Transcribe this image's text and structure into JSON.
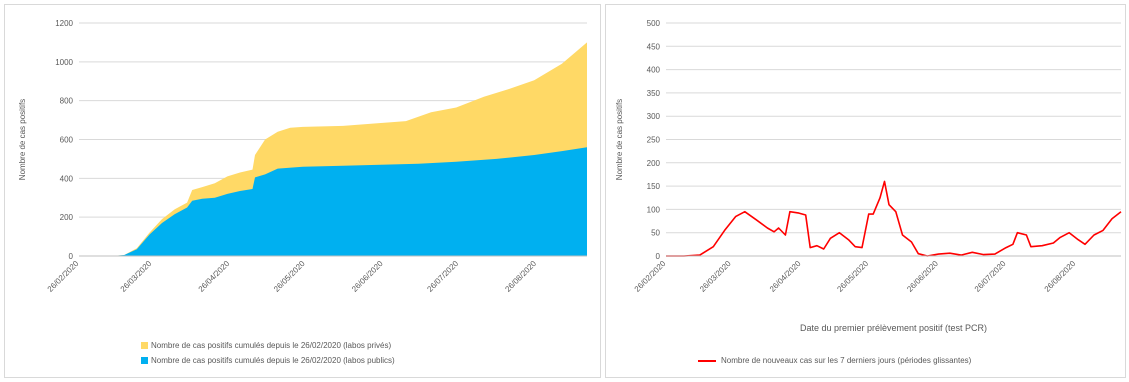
{
  "colors": {
    "prives": "#FFD966",
    "publics": "#00B0F0",
    "line": "#FF0000",
    "grid": "#d9d9d9"
  },
  "chart_data": [
    {
      "type": "area",
      "stacked": true,
      "ylim": [
        0,
        1200
      ],
      "yticks": [
        0,
        200,
        400,
        600,
        800,
        1000,
        1200
      ],
      "ylabel": "Nombre de cas positifs",
      "xlabel": "Date du premier prélèvement positif (test PCR)",
      "xrange": [
        "2020-02-26",
        "2020-09-15"
      ],
      "xticks": [
        "26/02/2020",
        "26/03/2020",
        "26/04/2020",
        "26/05/2020",
        "26/06/2020",
        "26/07/2020",
        "26/08/2020"
      ],
      "tick_dates": [
        "2020-02-26",
        "2020-03-26",
        "2020-04-26",
        "2020-05-26",
        "2020-06-26",
        "2020-07-26",
        "2020-08-26"
      ],
      "legend_position": "bottom",
      "grid": true,
      "series": [
        {
          "name": "Nombre de cas positifs cumulés depuis le 26/02/2020 (labos publics)",
          "points": [
            [
              "2020-02-26",
              0
            ],
            [
              "2020-03-10",
              0
            ],
            [
              "2020-03-15",
              5
            ],
            [
              "2020-03-20",
              35
            ],
            [
              "2020-03-25",
              110
            ],
            [
              "2020-03-30",
              170
            ],
            [
              "2020-04-04",
              215
            ],
            [
              "2020-04-09",
              250
            ],
            [
              "2020-04-11",
              285
            ],
            [
              "2020-04-15",
              295
            ],
            [
              "2020-04-20",
              300
            ],
            [
              "2020-04-25",
              320
            ],
            [
              "2020-04-30",
              335
            ],
            [
              "2020-05-05",
              345
            ],
            [
              "2020-05-06",
              405
            ],
            [
              "2020-05-10",
              420
            ],
            [
              "2020-05-15",
              450
            ],
            [
              "2020-05-25",
              460
            ],
            [
              "2020-06-10",
              465
            ],
            [
              "2020-06-25",
              470
            ],
            [
              "2020-07-10",
              475
            ],
            [
              "2020-07-25",
              485
            ],
            [
              "2020-08-10",
              500
            ],
            [
              "2020-08-25",
              520
            ],
            [
              "2020-09-05",
              540
            ],
            [
              "2020-09-15",
              560
            ]
          ]
        },
        {
          "name": "Nombre de cas positifs cumulés depuis le 26/02/2020 (labos privés)",
          "points": [
            [
              "2020-02-26",
              0
            ],
            [
              "2020-03-10",
              0
            ],
            [
              "2020-03-15",
              5
            ],
            [
              "2020-03-20",
              40
            ],
            [
              "2020-03-25",
              120
            ],
            [
              "2020-03-30",
              190
            ],
            [
              "2020-04-04",
              240
            ],
            [
              "2020-04-09",
              275
            ],
            [
              "2020-04-11",
              340
            ],
            [
              "2020-04-15",
              355
            ],
            [
              "2020-04-20",
              375
            ],
            [
              "2020-04-25",
              410
            ],
            [
              "2020-04-30",
              430
            ],
            [
              "2020-05-05",
              445
            ],
            [
              "2020-05-06",
              520
            ],
            [
              "2020-05-10",
              600
            ],
            [
              "2020-05-15",
              640
            ],
            [
              "2020-05-20",
              660
            ],
            [
              "2020-05-25",
              665
            ],
            [
              "2020-06-10",
              670
            ],
            [
              "2020-06-25",
              685
            ],
            [
              "2020-07-05",
              695
            ],
            [
              "2020-07-15",
              740
            ],
            [
              "2020-07-25",
              765
            ],
            [
              "2020-08-05",
              820
            ],
            [
              "2020-08-15",
              860
            ],
            [
              "2020-08-25",
              905
            ],
            [
              "2020-09-05",
              990
            ],
            [
              "2020-09-15",
              1100
            ]
          ]
        }
      ]
    },
    {
      "type": "line",
      "ylim": [
        0,
        500
      ],
      "yticks": [
        0,
        50,
        100,
        150,
        200,
        250,
        300,
        350,
        400,
        450,
        500
      ],
      "ylabel": "Nombre de cas positifs",
      "xlabel": "Date du premier prélèvement positif (test PCR)",
      "xrange": [
        "2020-02-26",
        "2020-09-15"
      ],
      "xticks": [
        "26/02/2020",
        "26/03/2020",
        "26/04/2020",
        "26/05/2020",
        "26/06/2020",
        "26/07/2020",
        "26/08/2020"
      ],
      "tick_dates": [
        "2020-02-26",
        "2020-03-26",
        "2020-04-26",
        "2020-05-26",
        "2020-06-26",
        "2020-07-26",
        "2020-08-26"
      ],
      "legend_position": "bottom",
      "grid": true,
      "series": [
        {
          "name": "Nombre de nouveaux cas sur les 7 derniers jours (périodes glissantes)",
          "points": [
            [
              "2020-02-26",
              0
            ],
            [
              "2020-03-05",
              0
            ],
            [
              "2020-03-12",
              2
            ],
            [
              "2020-03-18",
              20
            ],
            [
              "2020-03-23",
              55
            ],
            [
              "2020-03-28",
              85
            ],
            [
              "2020-04-01",
              95
            ],
            [
              "2020-04-06",
              78
            ],
            [
              "2020-04-11",
              60
            ],
            [
              "2020-04-14",
              52
            ],
            [
              "2020-04-16",
              60
            ],
            [
              "2020-04-19",
              45
            ],
            [
              "2020-04-21",
              95
            ],
            [
              "2020-04-25",
              92
            ],
            [
              "2020-04-28",
              88
            ],
            [
              "2020-04-30",
              18
            ],
            [
              "2020-05-03",
              22
            ],
            [
              "2020-05-06",
              15
            ],
            [
              "2020-05-09",
              38
            ],
            [
              "2020-05-13",
              50
            ],
            [
              "2020-05-17",
              35
            ],
            [
              "2020-05-20",
              20
            ],
            [
              "2020-05-23",
              18
            ],
            [
              "2020-05-26",
              90
            ],
            [
              "2020-05-28",
              90
            ],
            [
              "2020-05-31",
              125
            ],
            [
              "2020-06-02",
              160
            ],
            [
              "2020-06-04",
              110
            ],
            [
              "2020-06-07",
              95
            ],
            [
              "2020-06-10",
              45
            ],
            [
              "2020-06-14",
              30
            ],
            [
              "2020-06-17",
              5
            ],
            [
              "2020-06-21",
              0
            ],
            [
              "2020-06-26",
              4
            ],
            [
              "2020-07-01",
              6
            ],
            [
              "2020-07-06",
              2
            ],
            [
              "2020-07-11",
              8
            ],
            [
              "2020-07-16",
              3
            ],
            [
              "2020-07-21",
              4
            ],
            [
              "2020-07-26",
              18
            ],
            [
              "2020-07-29",
              25
            ],
            [
              "2020-07-31",
              50
            ],
            [
              "2020-08-04",
              45
            ],
            [
              "2020-08-06",
              20
            ],
            [
              "2020-08-11",
              22
            ],
            [
              "2020-08-16",
              28
            ],
            [
              "2020-08-19",
              40
            ],
            [
              "2020-08-23",
              50
            ],
            [
              "2020-08-27",
              35
            ],
            [
              "2020-08-30",
              25
            ],
            [
              "2020-09-03",
              45
            ],
            [
              "2020-09-07",
              55
            ],
            [
              "2020-09-11",
              80
            ],
            [
              "2020-09-15",
              95
            ]
          ]
        }
      ]
    }
  ]
}
